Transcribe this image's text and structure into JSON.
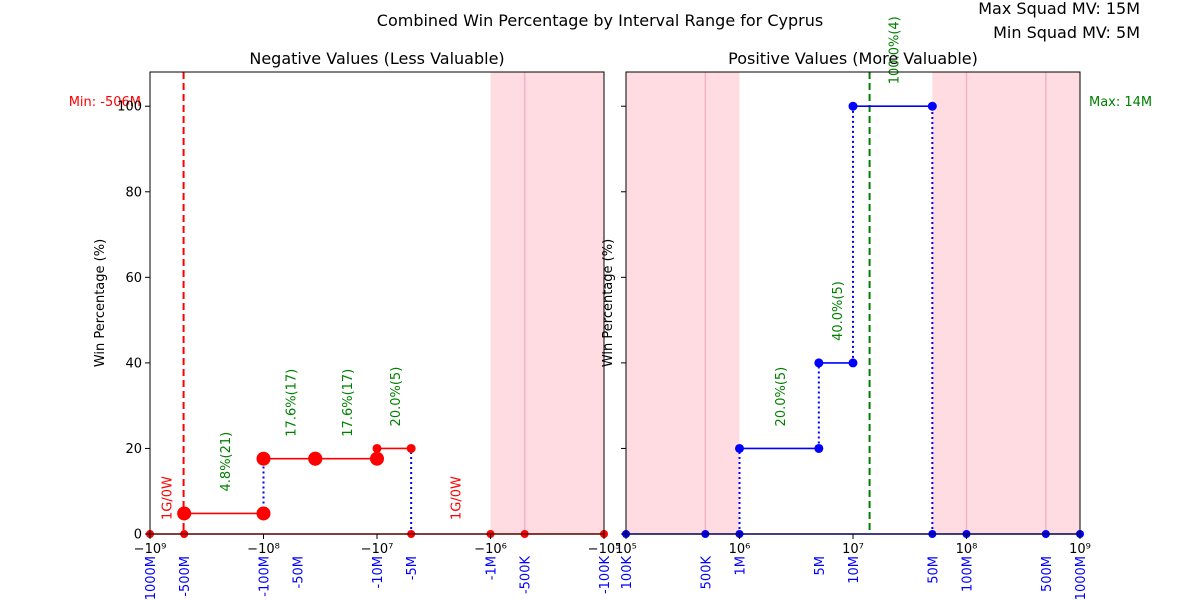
{
  "chart_data": {
    "type": "line",
    "title": "Combined Win Percentage by Interval Range for Cyprus",
    "info": [
      "Max Squad MV: 15M",
      "Min Squad MV: 5M"
    ],
    "colors": {
      "neg_series": "#ff0000",
      "pos_series": "#0000ff",
      "annotation": "#008000",
      "shade": "#ffc0cb",
      "min_line": "#ff0000",
      "max_line": "#008000",
      "value_tick": "#0000ff"
    },
    "panels": [
      {
        "title": "Negative Values (Less Valuable)",
        "ylabel": "Win Percentage (%)",
        "xscale": "symlog",
        "xlim": [
          -1000000000,
          -100000
        ],
        "ylim": [
          0,
          108
        ],
        "yticks": [
          0,
          20,
          40,
          60,
          80,
          100
        ],
        "xticks": [
          {
            "value": -1000000000,
            "label": "−10⁹"
          },
          {
            "value": -100000000,
            "label": "−10⁸"
          },
          {
            "value": -10000000,
            "label": "−10⁷"
          },
          {
            "value": -1000000,
            "label": "−10⁶"
          },
          {
            "value": -100000,
            "label": "−10⁵"
          }
        ],
        "value_ticks": [
          {
            "value": -1000000000,
            "label": "-1000M"
          },
          {
            "value": -500000000,
            "label": "-500M"
          },
          {
            "value": -100000000,
            "label": "-100M"
          },
          {
            "value": -50000000,
            "label": "-50M"
          },
          {
            "value": -10000000,
            "label": "-10M"
          },
          {
            "value": -5000000,
            "label": "-5M"
          },
          {
            "value": -1000000,
            "label": "-1M"
          },
          {
            "value": -500000,
            "label": "-500K"
          },
          {
            "value": -100000,
            "label": "-100K"
          }
        ],
        "shaded": [
          [
            -1000000,
            -100000
          ]
        ],
        "pale_lines": [
          -500000
        ],
        "ref_line": {
          "value": -506000000,
          "label": "Min: -506M"
        },
        "segments": [
          {
            "x0": -500000000,
            "x1": -100000000,
            "y": 4.8,
            "label": "4.8%(21)",
            "big": true
          },
          {
            "x0": -100000000,
            "x1": -35000000,
            "y": 17.6,
            "label": "17.6%(17)",
            "big": true
          },
          {
            "x0": -35000000,
            "x1": -10000000,
            "y": 17.6,
            "label": "17.6%(17)",
            "big": true
          },
          {
            "x0": -10000000,
            "x1": -5000000,
            "y": 20.0,
            "label": "20.0%(5)",
            "big": false
          }
        ],
        "zero_points": [
          -1000000000,
          -500000000,
          -5000000,
          -1000000,
          -500000,
          -100000
        ],
        "connectors": [
          {
            "x": -100000000,
            "y0": 4.8,
            "y1": 17.6
          },
          {
            "x": -5000000,
            "y0": 0,
            "y1": 20.0
          }
        ],
        "zero_labels": [
          {
            "x": -700000000,
            "label": "1G/0W"
          },
          {
            "x": -2000000,
            "label": "1G/0W"
          }
        ]
      },
      {
        "title": "Positive Values (More Valuable)",
        "ylabel": "Win Percentage (%)",
        "xscale": "log",
        "xlim": [
          100000,
          1000000000
        ],
        "ylim": [
          0,
          108
        ],
        "yticks": [
          0,
          20,
          40,
          60,
          80,
          100
        ],
        "xticks": [
          {
            "value": 100000,
            "label": "10⁵"
          },
          {
            "value": 1000000,
            "label": "10⁶"
          },
          {
            "value": 10000000,
            "label": "10⁷"
          },
          {
            "value": 100000000,
            "label": "10⁸"
          },
          {
            "value": 1000000000,
            "label": "10⁹"
          }
        ],
        "value_ticks": [
          {
            "value": 100000,
            "label": "100K"
          },
          {
            "value": 500000,
            "label": "500K"
          },
          {
            "value": 1000000,
            "label": "1M"
          },
          {
            "value": 5000000,
            "label": "5M"
          },
          {
            "value": 10000000,
            "label": "10M"
          },
          {
            "value": 50000000,
            "label": "50M"
          },
          {
            "value": 100000000,
            "label": "100M"
          },
          {
            "value": 500000000,
            "label": "500M"
          },
          {
            "value": 1000000000,
            "label": "1000M"
          }
        ],
        "shaded": [
          [
            100000,
            1000000
          ],
          [
            50000000,
            1000000000
          ]
        ],
        "pale_lines": [
          500000,
          100000000,
          500000000
        ],
        "ref_line": {
          "value": 14000000,
          "label": "Max: 14M"
        },
        "segments": [
          {
            "x0": 1000000,
            "x1": 5000000,
            "y": 20.0,
            "label": "20.0%(5)",
            "big": false
          },
          {
            "x0": 5000000,
            "x1": 10000000,
            "y": 40.0,
            "label": "40.0%(5)",
            "big": false
          },
          {
            "x0": 10000000,
            "x1": 50000000,
            "y": 100.0,
            "label": "100.0%(4)",
            "big": false
          }
        ],
        "zero_points": [
          100000,
          500000,
          1000000,
          50000000,
          100000000,
          500000000,
          1000000000
        ],
        "connectors": [
          {
            "x": 1000000,
            "y0": 0,
            "y1": 20.0
          },
          {
            "x": 5000000,
            "y0": 20.0,
            "y1": 40.0
          },
          {
            "x": 10000000,
            "y0": 40.0,
            "y1": 100.0
          },
          {
            "x": 50000000,
            "y0": 0,
            "y1": 100.0
          }
        ],
        "zero_labels": []
      }
    ]
  }
}
